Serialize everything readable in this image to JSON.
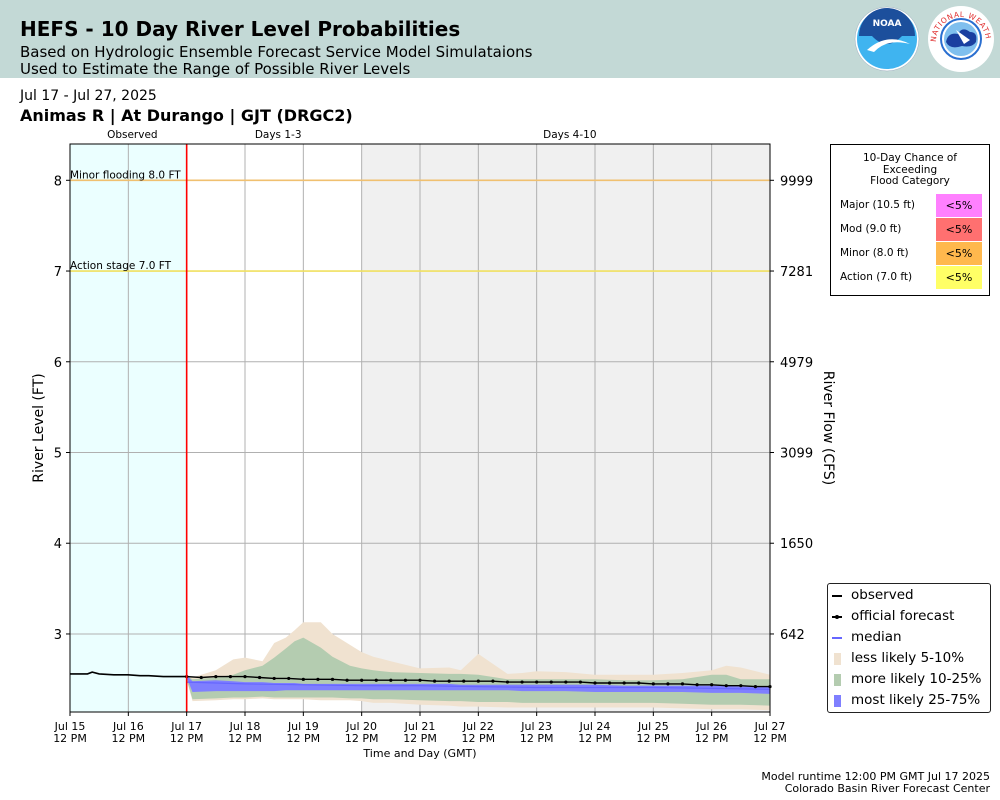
{
  "header": {
    "title": "HEFS - 10 Day River Level Probabilities",
    "subtitle1": "Based on Hydrologic Ensemble Forecast Service Model Simulataions",
    "subtitle2": "Used to Estimate the Range of Possible River Levels",
    "logo_noaa_text": "NOAA",
    "logo_nws_text": "NATIONAL WEATHER SERVICE"
  },
  "info": {
    "date_range": "Jul 17 - Jul 27, 2025",
    "station": "Animas R | At Durango | GJT (DRGC2)"
  },
  "flood_categories": {
    "title_lines": [
      "10-Day Chance of",
      "Exceeding",
      "Flood Category"
    ],
    "rows": [
      {
        "label": "Major (10.5 ft)",
        "value": "<5%",
        "color": "#ff80ff"
      },
      {
        "label": "Mod (9.0 ft)",
        "value": "<5%",
        "color": "#ff7070"
      },
      {
        "label": "Minor (8.0 ft)",
        "value": "<5%",
        "color": "#ffb84d"
      },
      {
        "label": "Action (7.0 ft)",
        "value": "<5%",
        "color": "#ffff66"
      }
    ]
  },
  "legend": {
    "items": [
      {
        "label": "observed",
        "kind": "line",
        "color": "#000000"
      },
      {
        "label": "official forecast",
        "kind": "dotline",
        "color": "#000000"
      },
      {
        "label": "median",
        "kind": "line",
        "color": "#6666ff"
      },
      {
        "label": "less likely 5-10%",
        "kind": "patch",
        "color": "#f0e2d0"
      },
      {
        "label": "more likely 10-25%",
        "kind": "patch",
        "color": "#b4ccb0"
      },
      {
        "label": "most likely 25-75%",
        "kind": "patch",
        "color": "#7f7fff"
      }
    ]
  },
  "footer": {
    "line1": "Model runtime 12:00 PM GMT Jul 17 2025",
    "line2": "Colorado Basin River Forecast Center"
  },
  "chart_data": {
    "type": "area",
    "xlabel": "Time and Day (GMT)",
    "ylabel": "River Level (FT)",
    "y2label": "River Flow (CFS)",
    "ylim": [
      2.14,
      8.4
    ],
    "xlim": [
      0,
      12
    ],
    "grid": true,
    "x_ticks": [
      {
        "day": "Jul 15",
        "time": "12 PM"
      },
      {
        "day": "Jul 16",
        "time": "12 PM"
      },
      {
        "day": "Jul 17",
        "time": "12 PM"
      },
      {
        "day": "Jul 18",
        "time": "12 PM"
      },
      {
        "day": "Jul 19",
        "time": "12 PM"
      },
      {
        "day": "Jul 20",
        "time": "12 PM"
      },
      {
        "day": "Jul 21",
        "time": "12 PM"
      },
      {
        "day": "Jul 22",
        "time": "12 PM"
      },
      {
        "day": "Jul 23",
        "time": "12 PM"
      },
      {
        "day": "Jul 24",
        "time": "12 PM"
      },
      {
        "day": "Jul 25",
        "time": "12 PM"
      },
      {
        "day": "Jul 26",
        "time": "12 PM"
      },
      {
        "day": "Jul 27",
        "time": "12 PM"
      }
    ],
    "y_ticks": [
      3,
      4,
      5,
      6,
      7,
      8
    ],
    "y2_ticks": [
      {
        "level": 3,
        "label": "642"
      },
      {
        "level": 4,
        "label": "1650"
      },
      {
        "level": 5,
        "label": "3099"
      },
      {
        "level": 6,
        "label": "4979"
      },
      {
        "level": 7,
        "label": "7281"
      },
      {
        "level": 8,
        "label": "9999"
      }
    ],
    "periods": [
      {
        "label": "Observed",
        "start": 0,
        "end": 2,
        "color": "#ebffff"
      },
      {
        "label": "Days 1-3",
        "start": 2,
        "end": 5,
        "color": "#ffffff"
      },
      {
        "label": "Days 4-10",
        "start": 5,
        "end": 12,
        "color": "#f0f0f0"
      }
    ],
    "forecast_start": 2,
    "thresholds": [
      {
        "label": "Minor flooding 8.0 FT",
        "level": 8.0,
        "color": "#f0c070"
      },
      {
        "label": "Action stage 7.0 FT",
        "level": 7.0,
        "color": "#f0e060"
      }
    ],
    "observed": {
      "x": [
        0,
        0.3,
        0.38,
        0.5,
        0.75,
        1.0,
        1.2,
        1.35,
        1.6,
        1.8,
        2.0
      ],
      "y": [
        2.56,
        2.56,
        2.58,
        2.56,
        2.55,
        2.55,
        2.54,
        2.54,
        2.53,
        2.53,
        2.53
      ]
    },
    "official_forecast": {
      "x": [
        2.0,
        2.25,
        2.5,
        2.75,
        3.0,
        3.25,
        3.5,
        3.75,
        4.0,
        4.25,
        4.5,
        4.75,
        5.0,
        5.25,
        5.5,
        5.75,
        6.0,
        6.25,
        6.5,
        6.75,
        7.0,
        7.25,
        7.5,
        7.75,
        8.0,
        8.25,
        8.5,
        8.75,
        9.0,
        9.25,
        9.5,
        9.75,
        10.0,
        10.25,
        10.5,
        10.75,
        11.0,
        11.25,
        11.5,
        11.75,
        12.0
      ],
      "y": [
        2.53,
        2.52,
        2.53,
        2.53,
        2.53,
        2.52,
        2.51,
        2.51,
        2.5,
        2.5,
        2.5,
        2.49,
        2.49,
        2.49,
        2.49,
        2.49,
        2.49,
        2.48,
        2.48,
        2.48,
        2.48,
        2.48,
        2.47,
        2.47,
        2.47,
        2.47,
        2.47,
        2.47,
        2.46,
        2.46,
        2.46,
        2.46,
        2.45,
        2.45,
        2.45,
        2.44,
        2.44,
        2.43,
        2.43,
        2.42,
        2.42
      ]
    },
    "median": {
      "x": [
        2.0,
        2.5,
        3.0,
        4.0,
        5.0,
        6.0,
        7.0,
        8.0,
        9.0,
        10.0,
        11.0,
        12.0
      ],
      "y": [
        2.47,
        2.46,
        2.45,
        2.44,
        2.43,
        2.43,
        2.42,
        2.41,
        2.41,
        2.41,
        2.4,
        2.39
      ]
    },
    "bands": {
      "x": [
        2.0,
        2.1,
        2.5,
        2.8,
        3.0,
        3.3,
        3.5,
        3.7,
        3.85,
        4.0,
        4.3,
        4.5,
        4.8,
        5.0,
        5.2,
        5.5,
        6.0,
        6.5,
        6.7,
        7.0,
        7.5,
        7.75,
        8.0,
        8.5,
        9.0,
        9.5,
        10.0,
        10.5,
        11.0,
        11.25,
        11.5,
        12.0
      ],
      "p05": [
        2.49,
        2.26,
        2.27,
        2.28,
        2.28,
        2.29,
        2.28,
        2.28,
        2.28,
        2.28,
        2.27,
        2.27,
        2.27,
        2.26,
        2.24,
        2.24,
        2.22,
        2.21,
        2.2,
        2.2,
        2.19,
        2.19,
        2.19,
        2.19,
        2.19,
        2.19,
        2.19,
        2.18,
        2.17,
        2.17,
        2.17,
        2.16
      ],
      "p10": [
        2.5,
        2.28,
        2.29,
        2.3,
        2.3,
        2.31,
        2.3,
        2.3,
        2.3,
        2.3,
        2.3,
        2.3,
        2.29,
        2.29,
        2.28,
        2.28,
        2.27,
        2.26,
        2.26,
        2.25,
        2.25,
        2.24,
        2.24,
        2.24,
        2.24,
        2.24,
        2.24,
        2.23,
        2.22,
        2.22,
        2.22,
        2.21
      ],
      "p25": [
        2.52,
        2.36,
        2.37,
        2.37,
        2.37,
        2.37,
        2.37,
        2.38,
        2.38,
        2.38,
        2.38,
        2.38,
        2.38,
        2.38,
        2.38,
        2.38,
        2.38,
        2.38,
        2.38,
        2.38,
        2.38,
        2.37,
        2.37,
        2.37,
        2.36,
        2.36,
        2.36,
        2.36,
        2.35,
        2.35,
        2.35,
        2.34
      ],
      "p75": [
        2.54,
        2.48,
        2.49,
        2.48,
        2.47,
        2.47,
        2.46,
        2.46,
        2.46,
        2.45,
        2.45,
        2.45,
        2.45,
        2.45,
        2.45,
        2.45,
        2.45,
        2.45,
        2.44,
        2.44,
        2.44,
        2.44,
        2.44,
        2.44,
        2.44,
        2.43,
        2.43,
        2.43,
        2.43,
        2.43,
        2.42,
        2.42
      ],
      "p90": [
        2.54,
        2.5,
        2.52,
        2.55,
        2.6,
        2.65,
        2.74,
        2.84,
        2.92,
        2.96,
        2.85,
        2.75,
        2.65,
        2.62,
        2.6,
        2.58,
        2.57,
        2.56,
        2.56,
        2.55,
        2.5,
        2.5,
        2.5,
        2.5,
        2.5,
        2.49,
        2.49,
        2.5,
        2.55,
        2.55,
        2.5,
        2.5
      ],
      "p95": [
        2.55,
        2.52,
        2.6,
        2.72,
        2.74,
        2.7,
        2.9,
        2.96,
        3.04,
        3.13,
        3.13,
        3.0,
        2.88,
        2.8,
        2.75,
        2.7,
        2.62,
        2.63,
        2.6,
        2.78,
        2.56,
        2.57,
        2.59,
        2.58,
        2.55,
        2.55,
        2.55,
        2.57,
        2.6,
        2.65,
        2.63,
        2.55
      ]
    },
    "colors": {
      "observed": "#000000",
      "forecast": "#000000",
      "median": "#6666ff",
      "band_5_10": "#f0e2d0",
      "band_10_25": "#b4ccb0",
      "band_25_75": "#7f7fff",
      "forecast_start_line": "#ff0000",
      "grid": "#b0b0b0"
    }
  }
}
